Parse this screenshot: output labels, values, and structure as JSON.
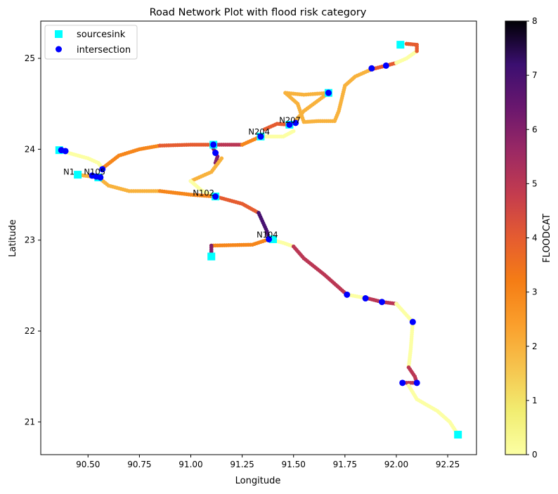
{
  "chart_data": {
    "type": "scatter",
    "title": "Road Network Plot with flood risk category",
    "xlabel": "Longitude",
    "ylabel": "Latitude",
    "xlim": [
      90.27,
      92.39
    ],
    "ylim": [
      20.64,
      25.41
    ],
    "x_ticks": [
      90.5,
      90.75,
      91.0,
      91.25,
      91.5,
      91.75,
      92.0,
      92.25
    ],
    "x_tick_labels": [
      "90.50",
      "90.75",
      "91.00",
      "91.25",
      "91.50",
      "91.75",
      "92.00",
      "92.25"
    ],
    "y_ticks": [
      21,
      22,
      23,
      24,
      25
    ],
    "y_tick_labels": [
      "21",
      "22",
      "23",
      "24",
      "25"
    ],
    "grid": false,
    "legend": {
      "position": "top-left",
      "entries": [
        {
          "label": "sourcesink",
          "marker": "square",
          "color": "#00ffff"
        },
        {
          "label": "intersection",
          "marker": "circle",
          "color": "#0000ff"
        }
      ]
    },
    "colorbar": {
      "label": "FLOODCAT",
      "colormap": "inferno_r",
      "range": [
        0,
        8
      ],
      "ticks": [
        0,
        1,
        2,
        3,
        4,
        5,
        6,
        7,
        8
      ]
    },
    "road_segments": [
      {
        "floodcat": 0,
        "path": [
          [
            90.36,
            23.99
          ],
          [
            90.42,
            23.95
          ],
          [
            90.5,
            23.9
          ],
          [
            90.55,
            23.85
          ],
          [
            90.57,
            23.79
          ]
        ]
      },
      {
        "floodcat": 3,
        "path": [
          [
            90.57,
            23.79
          ],
          [
            90.65,
            23.93
          ],
          [
            90.75,
            24.0
          ],
          [
            90.85,
            24.04
          ]
        ]
      },
      {
        "floodcat": 4,
        "path": [
          [
            90.85,
            24.04
          ],
          [
            91.0,
            24.05
          ],
          [
            91.1,
            24.05
          ]
        ]
      },
      {
        "floodcat": 5,
        "path": [
          [
            91.1,
            24.05
          ],
          [
            91.2,
            24.05
          ],
          [
            91.25,
            24.05
          ]
        ]
      },
      {
        "floodcat": 3,
        "path": [
          [
            91.25,
            24.05
          ],
          [
            91.3,
            24.1
          ],
          [
            91.34,
            24.14
          ]
        ]
      },
      {
        "floodcat": 0,
        "path": [
          [
            91.34,
            24.14
          ],
          [
            91.45,
            24.14
          ],
          [
            91.5,
            24.2
          ]
        ]
      },
      {
        "floodcat": 4,
        "path": [
          [
            91.36,
            24.22
          ],
          [
            91.42,
            24.28
          ],
          [
            91.48,
            24.27
          ]
        ]
      },
      {
        "floodcat": 2,
        "path": [
          [
            91.5,
            24.29
          ],
          [
            91.55,
            24.42
          ],
          [
            91.67,
            24.62
          ]
        ]
      },
      {
        "floodcat": 2,
        "path": [
          [
            91.46,
            24.62
          ],
          [
            91.55,
            24.6
          ],
          [
            91.67,
            24.62
          ]
        ]
      },
      {
        "floodcat": 2,
        "path": [
          [
            91.46,
            24.62
          ],
          [
            91.52,
            24.5
          ],
          [
            91.55,
            24.3
          ],
          [
            91.62,
            24.31
          ],
          [
            91.7,
            24.31
          ],
          [
            91.72,
            24.42
          ],
          [
            91.75,
            24.7
          ],
          [
            91.8,
            24.8
          ],
          [
            91.88,
            24.88
          ]
        ]
      },
      {
        "floodcat": 4,
        "path": [
          [
            91.88,
            24.88
          ],
          [
            91.95,
            24.92
          ],
          [
            92.0,
            24.95
          ]
        ]
      },
      {
        "floodcat": 0,
        "path": [
          [
            92.0,
            24.95
          ],
          [
            92.05,
            25.0
          ],
          [
            92.1,
            25.08
          ]
        ]
      },
      {
        "floodcat": 4,
        "path": [
          [
            92.1,
            25.08
          ],
          [
            92.1,
            25.15
          ],
          [
            92.05,
            25.16
          ]
        ]
      },
      {
        "floodcat": 6,
        "path": [
          [
            91.1,
            24.05
          ],
          [
            91.13,
            23.92
          ],
          [
            91.12,
            23.85
          ]
        ]
      },
      {
        "floodcat": 2,
        "path": [
          [
            91.15,
            23.9
          ],
          [
            91.1,
            23.75
          ],
          [
            91.0,
            23.65
          ]
        ]
      },
      {
        "floodcat": 0,
        "path": [
          [
            91.0,
            23.65
          ],
          [
            91.05,
            23.55
          ],
          [
            91.12,
            23.48
          ]
        ]
      },
      {
        "floodcat": 2,
        "path": [
          [
            90.45,
            23.72
          ],
          [
            90.55,
            23.69
          ],
          [
            90.6,
            23.6
          ],
          [
            90.7,
            23.54
          ],
          [
            90.85,
            23.54
          ]
        ]
      },
      {
        "floodcat": 3,
        "path": [
          [
            90.85,
            23.54
          ],
          [
            91.0,
            23.5
          ],
          [
            91.12,
            23.48
          ]
        ]
      },
      {
        "floodcat": 4,
        "path": [
          [
            91.12,
            23.48
          ],
          [
            91.25,
            23.4
          ],
          [
            91.33,
            23.3
          ]
        ]
      },
      {
        "floodcat": 7,
        "path": [
          [
            91.33,
            23.3
          ],
          [
            91.37,
            23.1
          ],
          [
            91.38,
            23.01
          ]
        ]
      },
      {
        "floodcat": 3,
        "path": [
          [
            91.38,
            23.01
          ],
          [
            91.3,
            22.95
          ],
          [
            91.1,
            22.94
          ]
        ]
      },
      {
        "floodcat": 6,
        "path": [
          [
            91.1,
            22.94
          ],
          [
            91.1,
            22.85
          ]
        ]
      },
      {
        "floodcat": 0,
        "path": [
          [
            91.38,
            23.01
          ],
          [
            91.45,
            22.97
          ],
          [
            91.5,
            22.93
          ]
        ]
      },
      {
        "floodcat": 5,
        "path": [
          [
            91.5,
            22.93
          ],
          [
            91.55,
            22.8
          ],
          [
            91.65,
            22.62
          ],
          [
            91.76,
            22.4
          ]
        ]
      },
      {
        "floodcat": 0,
        "path": [
          [
            91.76,
            22.4
          ],
          [
            91.86,
            22.36
          ]
        ]
      },
      {
        "floodcat": 5,
        "path": [
          [
            91.86,
            22.36
          ],
          [
            91.93,
            22.32
          ],
          [
            92.0,
            22.3
          ]
        ]
      },
      {
        "floodcat": 0,
        "path": [
          [
            92.0,
            22.3
          ],
          [
            92.08,
            22.1
          ],
          [
            92.07,
            21.8
          ],
          [
            92.06,
            21.6
          ]
        ]
      },
      {
        "floodcat": 5,
        "path": [
          [
            92.06,
            21.6
          ],
          [
            92.09,
            21.5
          ],
          [
            92.1,
            21.43
          ],
          [
            92.03,
            21.43
          ]
        ]
      },
      {
        "floodcat": 0,
        "path": [
          [
            92.06,
            21.4
          ],
          [
            92.1,
            21.25
          ],
          [
            92.2,
            21.12
          ],
          [
            92.26,
            21.0
          ],
          [
            92.3,
            20.86
          ]
        ]
      }
    ],
    "sourcesink_points": [
      [
        90.36,
        23.99
      ],
      [
        90.45,
        23.72
      ],
      [
        90.55,
        23.69
      ],
      [
        91.1,
        22.82
      ],
      [
        91.12,
        23.48
      ],
      [
        91.34,
        24.14
      ],
      [
        91.4,
        23.01
      ],
      [
        91.11,
        24.05
      ],
      [
        91.48,
        24.27
      ],
      [
        91.67,
        24.62
      ],
      [
        92.02,
        25.15
      ],
      [
        92.3,
        20.86
      ]
    ],
    "intersection_points": [
      [
        90.37,
        23.99
      ],
      [
        90.39,
        23.98
      ],
      [
        90.57,
        23.78
      ],
      [
        90.52,
        23.71
      ],
      [
        90.54,
        23.7
      ],
      [
        90.56,
        23.69
      ],
      [
        91.11,
        24.05
      ],
      [
        91.12,
        23.96
      ],
      [
        91.12,
        23.48
      ],
      [
        91.34,
        24.14
      ],
      [
        91.38,
        23.01
      ],
      [
        91.48,
        24.27
      ],
      [
        91.51,
        24.29
      ],
      [
        91.67,
        24.62
      ],
      [
        91.88,
        24.89
      ],
      [
        91.95,
        24.92
      ],
      [
        91.76,
        22.4
      ],
      [
        91.85,
        22.36
      ],
      [
        91.93,
        22.32
      ],
      [
        92.08,
        22.1
      ],
      [
        92.03,
        21.43
      ],
      [
        92.1,
        21.43
      ]
    ],
    "annotations": [
      {
        "text": "N1",
        "x": 90.38,
        "y": 23.72
      },
      {
        "text": "N105",
        "x": 90.48,
        "y": 23.72
      },
      {
        "text": "N102",
        "x": 91.01,
        "y": 23.49
      },
      {
        "text": "N104",
        "x": 91.32,
        "y": 23.03
      },
      {
        "text": "N204",
        "x": 91.28,
        "y": 24.16
      },
      {
        "text": "N207",
        "x": 91.43,
        "y": 24.29
      }
    ]
  }
}
